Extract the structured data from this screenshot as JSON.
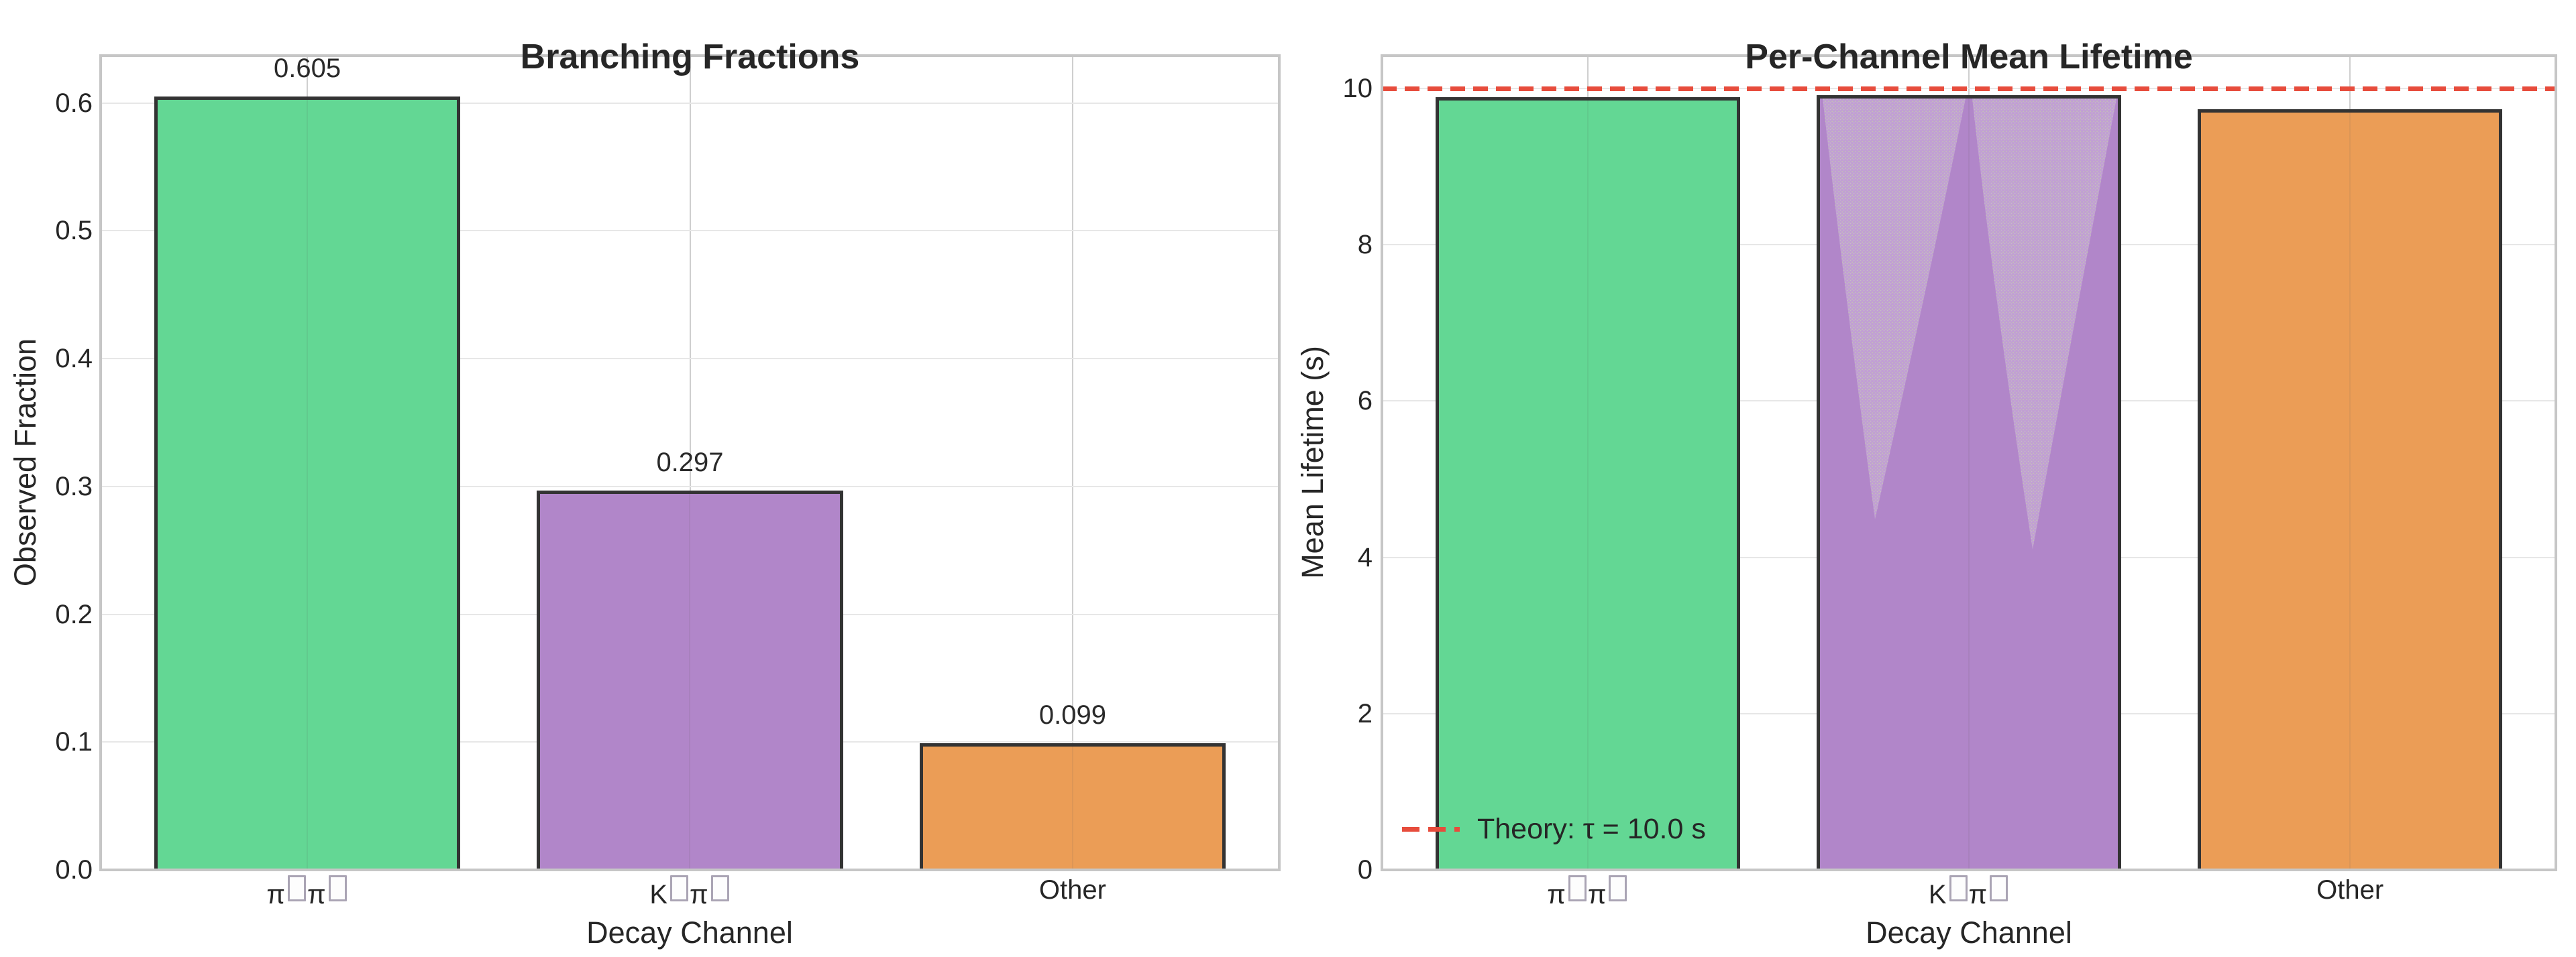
{
  "colors": {
    "background": "#ffffff",
    "text": "#262626",
    "bar_edge": "#333333",
    "spine": "#c6c6c6",
    "grid": "#d9d9d9",
    "theory_red": "#e74c3c",
    "green": "#63d794",
    "purple": "#b186c9",
    "orange": "#eb9d56"
  },
  "chart_data": [
    {
      "type": "bar",
      "title": "Branching Fractions",
      "xlabel": "Decay Channel",
      "ylabel": "Observed Fraction",
      "categories": [
        "π□π□",
        "K□π□",
        "Other"
      ],
      "values": [
        0.605,
        0.297,
        0.099
      ],
      "bar_labels": [
        "0.605",
        "0.297",
        "0.099"
      ],
      "bar_colors": [
        "#63d794",
        "#b186c9",
        "#eb9d56"
      ],
      "ylim": [
        0,
        0.637
      ],
      "yticks": [
        0.0,
        0.1,
        0.2,
        0.3,
        0.4,
        0.5,
        0.6
      ],
      "ytick_labels": [
        "0.0",
        "0.1",
        "0.2",
        "0.3",
        "0.4",
        "0.5",
        "0.6"
      ],
      "grid": true,
      "legend_position": "none"
    },
    {
      "type": "bar",
      "title": "Per-Channel Mean Lifetime",
      "xlabel": "Decay Channel",
      "ylabel": "Mean Lifetime (s)",
      "categories": [
        "π□π□",
        "K□π□",
        "Other"
      ],
      "values": [
        9.89,
        9.91,
        9.73
      ],
      "bar_labels": [],
      "bar_colors": [
        "#63d794",
        "#b186c9",
        "#eb9d56"
      ],
      "ylim": [
        0,
        10.42
      ],
      "yticks": [
        0,
        2,
        4,
        6,
        8,
        10
      ],
      "ytick_labels": [
        "0",
        "2",
        "4",
        "6",
        "8",
        "10"
      ],
      "grid": true,
      "theory_line": {
        "y": 10.0,
        "color": "#e74c3c",
        "style": "dashed",
        "label": "Theory: τ = 10.0 s"
      },
      "legend": {
        "position": "lower-left",
        "entries": [
          {
            "label": "Theory: τ = 10.0 s",
            "color": "#e74c3c",
            "line": "dashed"
          }
        ]
      },
      "texture_overlay": {
        "bar": "K□π□",
        "description": "stippled cone-shaped scatter texture inside second bar"
      }
    }
  ]
}
